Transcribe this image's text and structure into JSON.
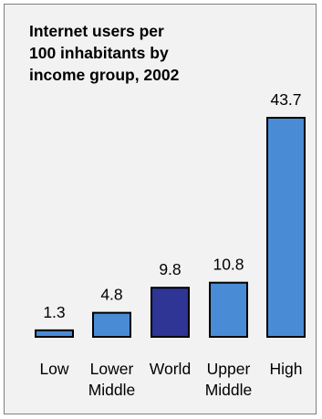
{
  "chart_data": {
    "type": "bar",
    "title": "Internet users per\n100 inhabitants by\nincome group, 2002",
    "categories": [
      [
        "Low"
      ],
      [
        "Lower",
        "Middle"
      ],
      [
        "World"
      ],
      [
        "Upper",
        "Middle"
      ],
      [
        "High"
      ]
    ],
    "values": [
      1.3,
      4.8,
      9.8,
      10.8,
      43.7
    ],
    "value_labels": [
      "1.3",
      "4.8",
      "9.8",
      "10.8",
      "43.7"
    ],
    "highlight_index": 2,
    "colors": {
      "bar": "#4a8bd6",
      "highlight": "#2e3595",
      "outline": "#000000",
      "background": "#f2f2f2",
      "border": "#7f7f7f"
    },
    "ylim": [
      0,
      43.7
    ],
    "grid": false,
    "legend": "none"
  }
}
